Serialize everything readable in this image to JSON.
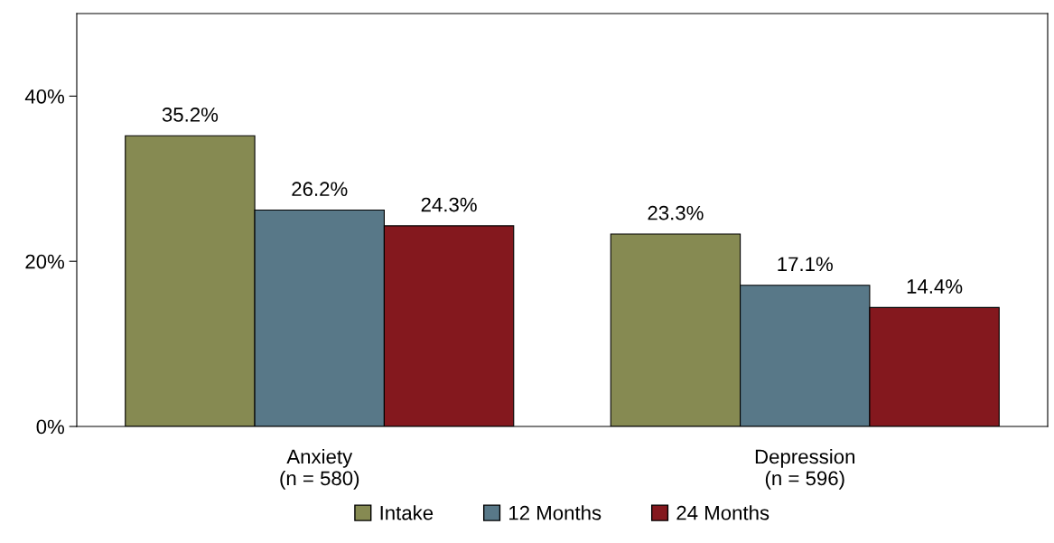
{
  "chart_data": {
    "type": "bar",
    "categories": [
      "Anxiety\n(n = 580)",
      "Depression\n(n = 596)"
    ],
    "series": [
      {
        "name": "Intake",
        "color": "#868a52",
        "values": [
          35.2,
          23.3
        ],
        "value_labels": [
          "35.2%",
          "23.3%"
        ]
      },
      {
        "name": "12 Months",
        "color": "#587888",
        "values": [
          26.2,
          17.1
        ],
        "value_labels": [
          "26.2%",
          "17.1%"
        ]
      },
      {
        "name": "24 Months",
        "color": "#84181e",
        "values": [
          24.3,
          14.4
        ],
        "value_labels": [
          "24.3%",
          "14.4%"
        ]
      }
    ],
    "ylim": [
      0,
      50
    ],
    "yticks": [
      {
        "value": 0,
        "label": "0%"
      },
      {
        "value": 20,
        "label": "20%"
      },
      {
        "value": 40,
        "label": "40%"
      }
    ],
    "grid": false,
    "legend": "bottom"
  }
}
